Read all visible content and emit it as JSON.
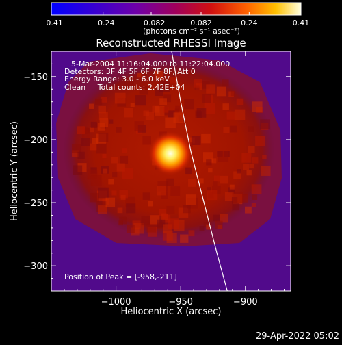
{
  "chart_data": {
    "type": "heatmap",
    "title": "Reconstructed RHESSI Image",
    "xlabel": "Heliocentric X (arcsec)",
    "ylabel": "Heliocentric Y (arcsec)",
    "xlim": [
      -1050,
      -865
    ],
    "ylim": [
      -320,
      -130
    ],
    "x_ticks": [
      -1000,
      -950,
      -900
    ],
    "x_tick_labels": [
      "−1000",
      "−950",
      "−900"
    ],
    "y_ticks": [
      -300,
      -250,
      -200,
      -150
    ],
    "y_tick_labels": [
      "−300",
      "−250",
      "−200",
      "−150"
    ],
    "colorbar": {
      "range": [
        -0.41,
        0.41
      ],
      "tick_values": [
        -0.41,
        -0.24,
        -0.082,
        0.082,
        0.24,
        0.41
      ],
      "tick_labels": [
        "−0.41",
        "−0.24",
        "−0.082",
        "0.082",
        "0.24",
        "0.41"
      ],
      "unit_label": "(photons cm⁻² s⁻¹ asec⁻²)"
    },
    "annotations": [
      "5-Mar-2004 11:16:04.000 to 11:22:04.000",
      "Detectors: 3F 4F 5F 6F 7F 8F, Att 0",
      "Energy Range: 3.0 - 6.0 keV",
      "Clean     Total counts: 2.42E+04"
    ],
    "peak_label": "Position of Peak = [-958,-211]",
    "peak": {
      "x": -958,
      "y": -211
    },
    "limb_curve": [
      [
        -957,
        -130
      ],
      [
        -950,
        -170
      ],
      [
        -942,
        -210
      ],
      [
        -932,
        -250
      ],
      [
        -922,
        -290
      ],
      [
        -914,
        -320
      ]
    ],
    "grid": false
  },
  "footer": {
    "date_label": "29-Apr-2022 05:02"
  }
}
